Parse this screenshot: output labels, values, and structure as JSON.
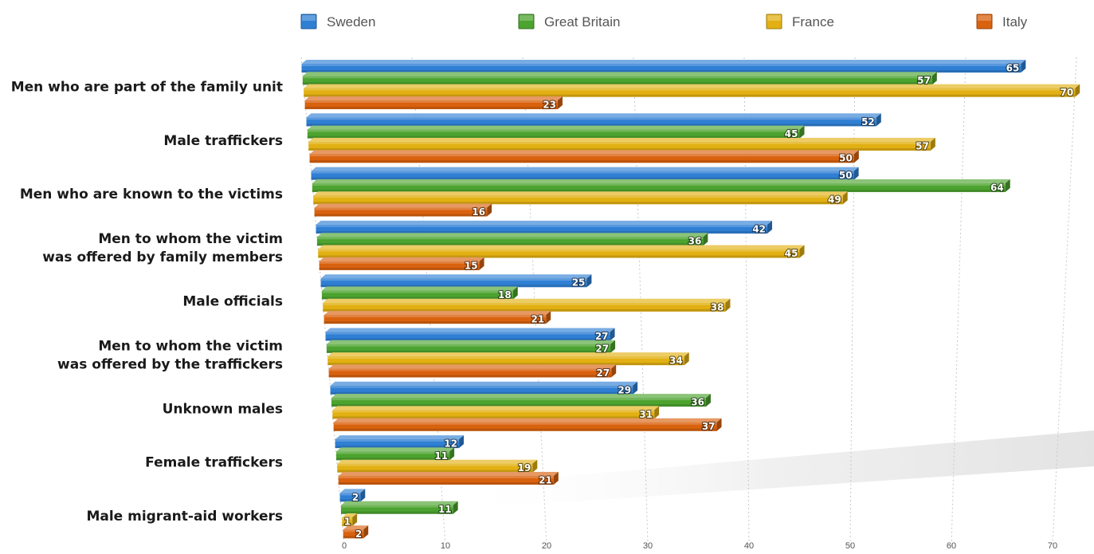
{
  "chart_data": {
    "type": "bar",
    "orientation": "horizontal",
    "title": "",
    "xlabel": "",
    "ylabel": "",
    "xlim": [
      0,
      70
    ],
    "x_ticks": [
      "0",
      "10",
      "20",
      "30",
      "40",
      "50",
      "60",
      "70"
    ],
    "grid": "vertical dotted",
    "legend_position": "top",
    "categories": [
      "Men who are part of the family unit",
      "Male traffickers",
      "Men who are known to the victims",
      "Men to whom the victim was offered by family members",
      "Male officials",
      "Men to whom the victim was offered by the traffickers",
      "Unknown males",
      "Female traffickers",
      "Male migrant-aid workers"
    ],
    "category_lines": [
      [
        "Men who are part of the family unit"
      ],
      [
        "Male traffickers"
      ],
      [
        "Men who are known to the victims"
      ],
      [
        "Men to whom the victim",
        "was offered by family members"
      ],
      [
        "Male officials"
      ],
      [
        "Men to whom the victim",
        "was offered by the traffickers"
      ],
      [
        "Unknown males"
      ],
      [
        "Female traffickers"
      ],
      [
        "Male migrant-aid workers"
      ]
    ],
    "series": [
      {
        "name": "Sweden",
        "color": "#2f7fd4",
        "values": [
          65,
          52,
          50,
          42,
          25,
          27,
          29,
          12,
          2
        ]
      },
      {
        "name": "Great Britain",
        "color": "#4ca32f",
        "values": [
          57,
          45,
          64,
          36,
          18,
          27,
          36,
          11,
          11
        ]
      },
      {
        "name": "France",
        "color": "#e2b012",
        "values": [
          70,
          57,
          49,
          45,
          38,
          34,
          31,
          19,
          1
        ]
      },
      {
        "name": "Italy",
        "color": "#d9620f",
        "values": [
          23,
          50,
          16,
          15,
          21,
          27,
          37,
          21,
          2
        ]
      }
    ]
  }
}
